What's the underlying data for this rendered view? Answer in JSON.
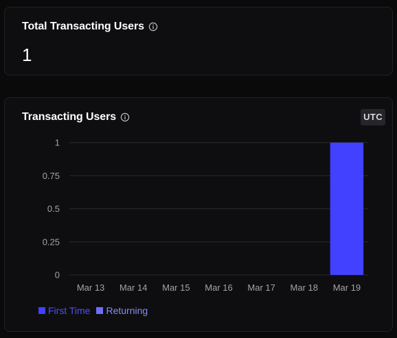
{
  "total_card": {
    "title": "Total Transacting Users",
    "value": "1",
    "info_icon": "info-icon"
  },
  "chart_card": {
    "title": "Transacting Users",
    "info_icon": "info-icon",
    "timezone_badge": "UTC"
  },
  "colors": {
    "first_time": "#4141ff",
    "returning": "#6e6ef7",
    "legend_first_time_text": "#4f4fff",
    "legend_returning_text": "#8a8af8",
    "grid": "#2a2a2e",
    "tick_text": "#a3a3aa"
  },
  "chart_data": {
    "type": "bar",
    "stacked": true,
    "categories": [
      "Mar 13",
      "Mar 14",
      "Mar 15",
      "Mar 16",
      "Mar 17",
      "Mar 18",
      "Mar 19"
    ],
    "series": [
      {
        "name": "First Time",
        "values": [
          0,
          0,
          0,
          0,
          0,
          0,
          1
        ]
      },
      {
        "name": "Returning",
        "values": [
          0,
          0,
          0,
          0,
          0,
          0,
          0
        ]
      }
    ],
    "ylim": [
      0,
      1
    ],
    "yticks": [
      0,
      0.25,
      0.5,
      0.75,
      1
    ],
    "ytick_labels": [
      "0",
      "0.25",
      "0.5",
      "0.75",
      "1"
    ],
    "grid": true,
    "legend_position": "bottom-left"
  }
}
